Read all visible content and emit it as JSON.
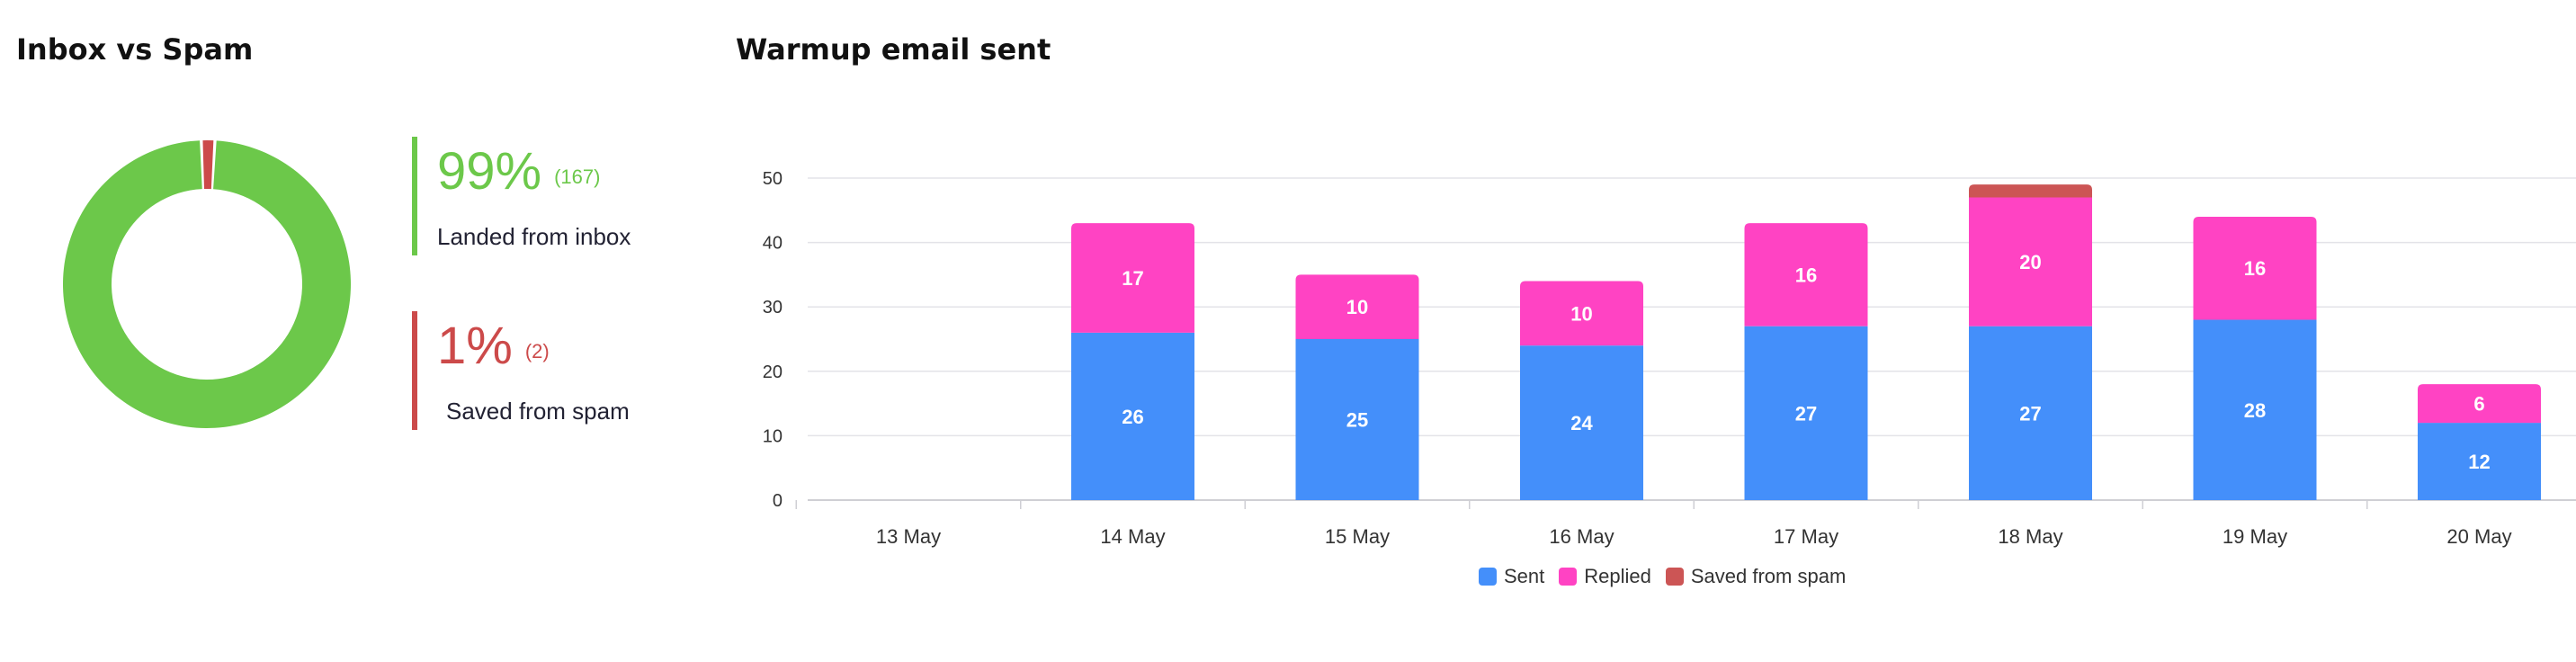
{
  "donut_panel": {
    "title": "Inbox vs Spam",
    "inbox": {
      "percent": "99%",
      "count": "(167)",
      "label": "Landed from inbox",
      "value": 167,
      "color": "#6cc84a"
    },
    "spam": {
      "percent": "1%",
      "count": "(2)",
      "label": "Saved from spam",
      "value": 2,
      "color": "#cc4a4a"
    }
  },
  "chart_panel": {
    "title": "Warmup email sent"
  },
  "chart_data": [
    {
      "type": "pie",
      "title": "Inbox vs Spam",
      "categories": [
        "Landed from inbox",
        "Saved from spam"
      ],
      "values": [
        167,
        2
      ],
      "colors": [
        "#6cc84a",
        "#cc4a4a"
      ]
    },
    {
      "type": "bar",
      "stacked": true,
      "title": "Warmup email sent",
      "categories": [
        "13 May",
        "14 May",
        "15 May",
        "16 May",
        "17 May",
        "18 May",
        "19 May",
        "20 May"
      ],
      "series": [
        {
          "name": "Sent",
          "values": [
            0,
            26,
            25,
            24,
            27,
            27,
            28,
            12
          ],
          "color": "#448ffa",
          "labels": [
            "",
            "26",
            "25",
            "24",
            "27",
            "27",
            "28",
            "12"
          ]
        },
        {
          "name": "Replied",
          "values": [
            0,
            17,
            10,
            10,
            16,
            20,
            16,
            6
          ],
          "color": "#ff43c3",
          "labels": [
            "",
            "17",
            "10",
            "10",
            "16",
            "20",
            "16",
            "6"
          ]
        },
        {
          "name": "Saved from spam",
          "values": [
            0,
            0,
            0,
            0,
            0,
            2,
            0,
            0
          ],
          "color": "#cc5555",
          "labels": [
            "",
            "",
            "",
            "",
            "",
            "",
            "",
            ""
          ]
        }
      ],
      "ylim": [
        0,
        50
      ],
      "yticks": [
        "0",
        "10",
        "20",
        "30",
        "40",
        "50"
      ],
      "grid": true,
      "legend": "bottom"
    }
  ]
}
